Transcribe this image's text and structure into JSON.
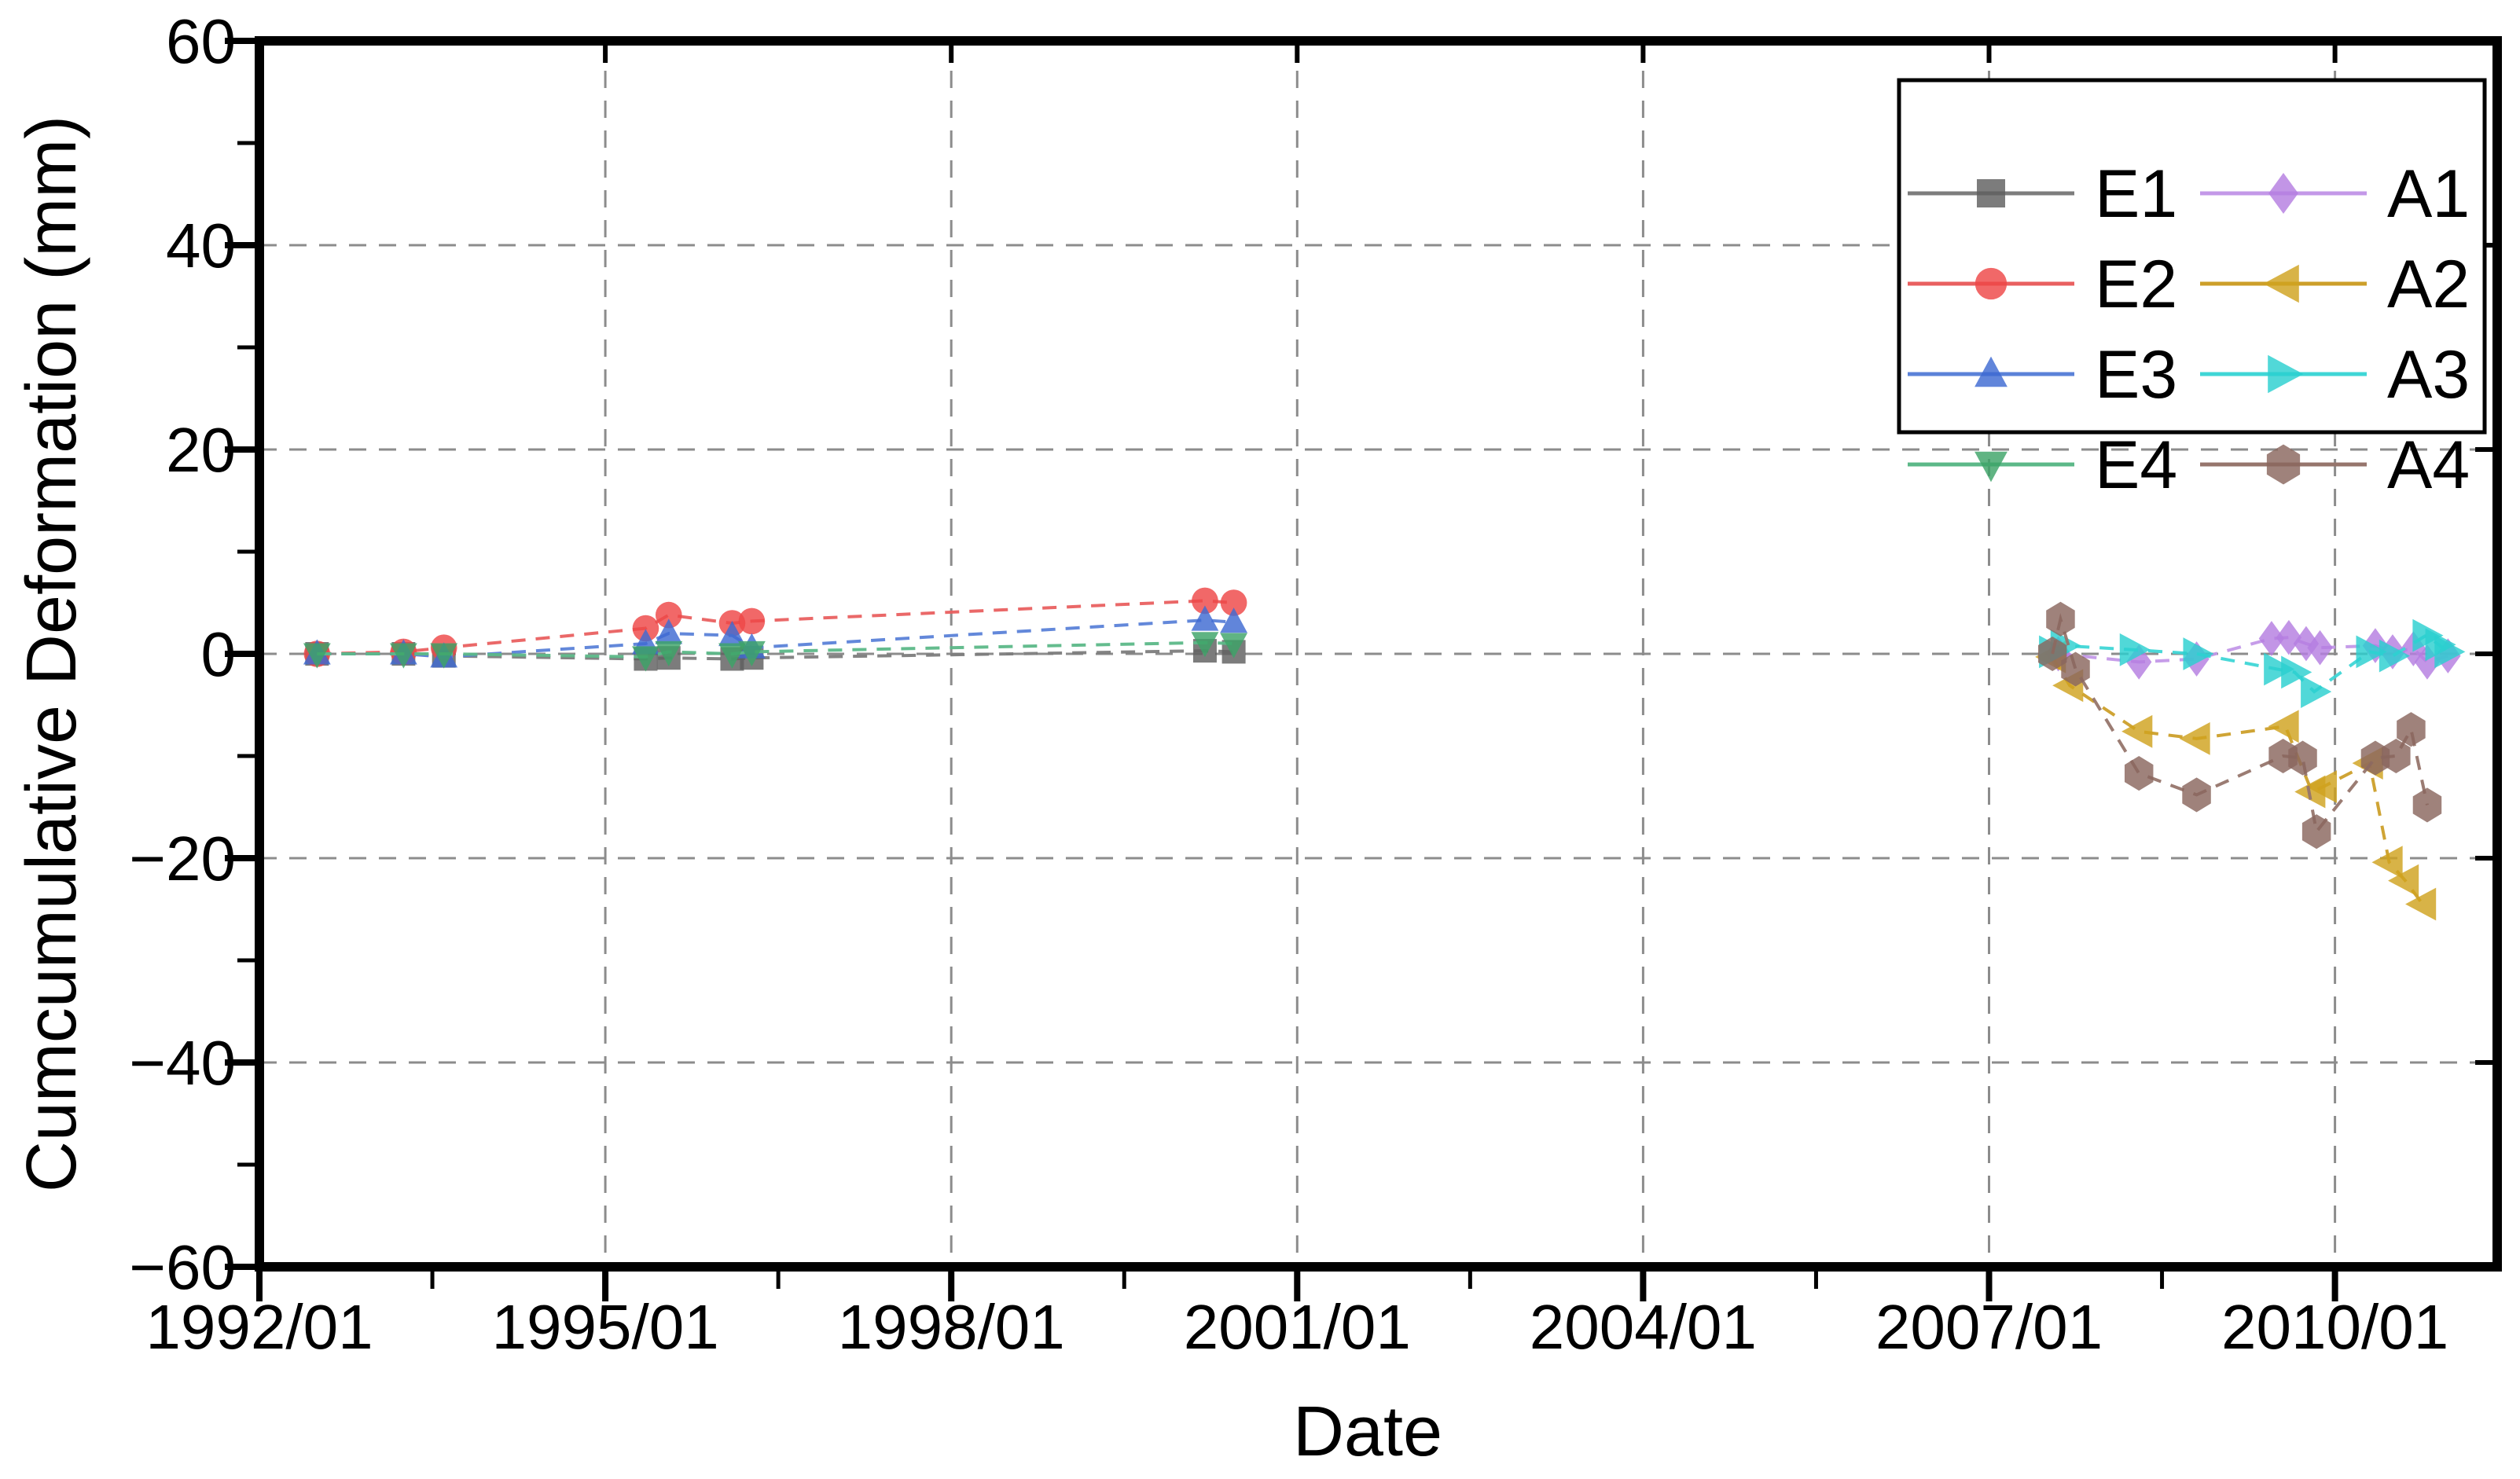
{
  "chart_data": {
    "type": "line",
    "title": "",
    "xlabel": "Date",
    "ylabel": "Cumcumulative Deformation (mm)",
    "x_axis": {
      "tick_years": [
        1992,
        1995,
        1998,
        2001,
        2004,
        2007,
        2010
      ],
      "tick_labels": [
        "1992/01",
        "1995/01",
        "1998/01",
        "2001/01",
        "2004/01",
        "2007/01",
        "2010/01"
      ],
      "minor_tick_years": [
        1993.5,
        1996.5,
        1999.5,
        2002.5,
        2005.5,
        2008.5
      ],
      "range_years": [
        1992.0,
        2011.45
      ],
      "gridline_years": [
        1995,
        1998,
        2001,
        2004,
        2007,
        2010
      ]
    },
    "y_axis": {
      "ticks": [
        60,
        40,
        20,
        0,
        -20,
        -40,
        -60
      ],
      "tick_labels": [
        "60",
        "40",
        "20",
        "0",
        "−20",
        "−40",
        "−60"
      ],
      "minor_ticks": [
        50,
        30,
        10,
        -10,
        -30,
        -50
      ],
      "range": [
        -60,
        60
      ],
      "gridline_values": [
        40,
        20,
        0,
        -20,
        -40
      ]
    },
    "grid": {
      "on": true,
      "color": "#8c8c8c",
      "style": "dashed"
    },
    "legend": {
      "position": "top-right",
      "columns": [
        [
          "E1",
          "E2",
          "E3",
          "E4"
        ],
        [
          "A1",
          "A2",
          "A3",
          "A4"
        ]
      ]
    },
    "series": [
      {
        "name": "E1",
        "marker": "square",
        "color": "#5f5f5f",
        "line_color": "#7d7d7d",
        "size": 30,
        "points": [
          [
            1992.5,
            0
          ],
          [
            1993.25,
            0
          ],
          [
            1993.6,
            -0.2
          ],
          [
            1995.35,
            -0.5
          ],
          [
            1995.55,
            -0.4
          ],
          [
            1996.1,
            -0.5
          ],
          [
            1996.27,
            -0.4
          ],
          [
            2000.2,
            0.3
          ],
          [
            2000.45,
            0.2
          ]
        ]
      },
      {
        "name": "E2",
        "marker": "circle",
        "color": "#ee4747",
        "line_color": "#e96060",
        "size": 30,
        "points": [
          [
            1992.5,
            0
          ],
          [
            1993.25,
            0.2
          ],
          [
            1993.6,
            0.6
          ],
          [
            1995.35,
            2.5
          ],
          [
            1995.55,
            3.8
          ],
          [
            1996.1,
            3.0
          ],
          [
            1996.27,
            3.2
          ],
          [
            2000.2,
            5.2
          ],
          [
            2000.45,
            5.0
          ]
        ]
      },
      {
        "name": "E3",
        "marker": "triangle-up",
        "color": "#3e6ad2",
        "line_color": "#5b82d8",
        "size": 30,
        "points": [
          [
            1992.5,
            0
          ],
          [
            1993.25,
            0
          ],
          [
            1993.6,
            -0.3
          ],
          [
            1995.35,
            1.0
          ],
          [
            1995.55,
            2.0
          ],
          [
            1996.1,
            1.8
          ],
          [
            1996.27,
            0.6
          ],
          [
            2000.2,
            3.3
          ],
          [
            2000.45,
            3.1
          ]
        ]
      },
      {
        "name": "E4",
        "marker": "triangle-down",
        "color": "#3da468",
        "line_color": "#5cb888",
        "size": 30,
        "points": [
          [
            1992.5,
            0
          ],
          [
            1993.25,
            0
          ],
          [
            1993.6,
            0
          ],
          [
            1995.35,
            -0.3
          ],
          [
            1995.55,
            0.2
          ],
          [
            1996.1,
            0
          ],
          [
            1996.27,
            0.2
          ],
          [
            2000.2,
            1.1
          ],
          [
            2000.45,
            1.0
          ]
        ]
      },
      {
        "name": "A1",
        "marker": "diamond",
        "color": "#b57ee0",
        "line_color": "#c398e8",
        "size": 36,
        "points": [
          [
            2007.6,
            0
          ],
          [
            2008.3,
            -0.8
          ],
          [
            2008.8,
            -0.5
          ],
          [
            2009.45,
            1.5
          ],
          [
            2009.6,
            1.6
          ],
          [
            2009.75,
            1.0
          ],
          [
            2009.87,
            0.6
          ],
          [
            2010.35,
            0.8
          ],
          [
            2010.5,
            0.2
          ],
          [
            2010.68,
            0.5
          ],
          [
            2010.8,
            -0.8
          ],
          [
            2010.98,
            -0.2
          ]
        ]
      },
      {
        "name": "A2",
        "marker": "triangle-left",
        "color": "#d0a21f",
        "line_color": "#cc9f2a",
        "size": 38,
        "points": [
          [
            2007.55,
            -0.3
          ],
          [
            2007.7,
            -3.1
          ],
          [
            2008.3,
            -7.6
          ],
          [
            2008.8,
            -8.3
          ],
          [
            2009.57,
            -7.1
          ],
          [
            2009.8,
            -13.5
          ],
          [
            2009.9,
            -13.0
          ],
          [
            2010.3,
            -10.7
          ],
          [
            2010.47,
            -20.4
          ],
          [
            2010.61,
            -22.2
          ],
          [
            2010.76,
            -24.5
          ]
        ]
      },
      {
        "name": "A3",
        "marker": "triangle-right",
        "color": "#2bcfcf",
        "line_color": "#3fd6d6",
        "size": 38,
        "points": [
          [
            2007.55,
            0.2
          ],
          [
            2007.65,
            0.8
          ],
          [
            2008.25,
            0.4
          ],
          [
            2008.8,
            0
          ],
          [
            2009.5,
            -1.5
          ],
          [
            2009.65,
            -1.8
          ],
          [
            2009.82,
            -3.7
          ],
          [
            2010.3,
            0.2
          ],
          [
            2010.5,
            -0.2
          ],
          [
            2010.79,
            1.8
          ],
          [
            2010.9,
            0.9
          ],
          [
            2010.98,
            0.2
          ]
        ]
      },
      {
        "name": "A4",
        "marker": "hexagon",
        "color": "#8a675e",
        "line_color": "#96756c",
        "size": 38,
        "points": [
          [
            2007.55,
            0
          ],
          [
            2007.62,
            3.4
          ],
          [
            2007.75,
            -1.5
          ],
          [
            2008.3,
            -11.7
          ],
          [
            2008.8,
            -13.8
          ],
          [
            2009.55,
            -10.0
          ],
          [
            2009.72,
            -10.2
          ],
          [
            2009.84,
            -17.4
          ],
          [
            2010.35,
            -10.2
          ],
          [
            2010.53,
            -10.0
          ],
          [
            2010.66,
            -7.4
          ],
          [
            2010.8,
            -14.8
          ]
        ]
      }
    ]
  }
}
